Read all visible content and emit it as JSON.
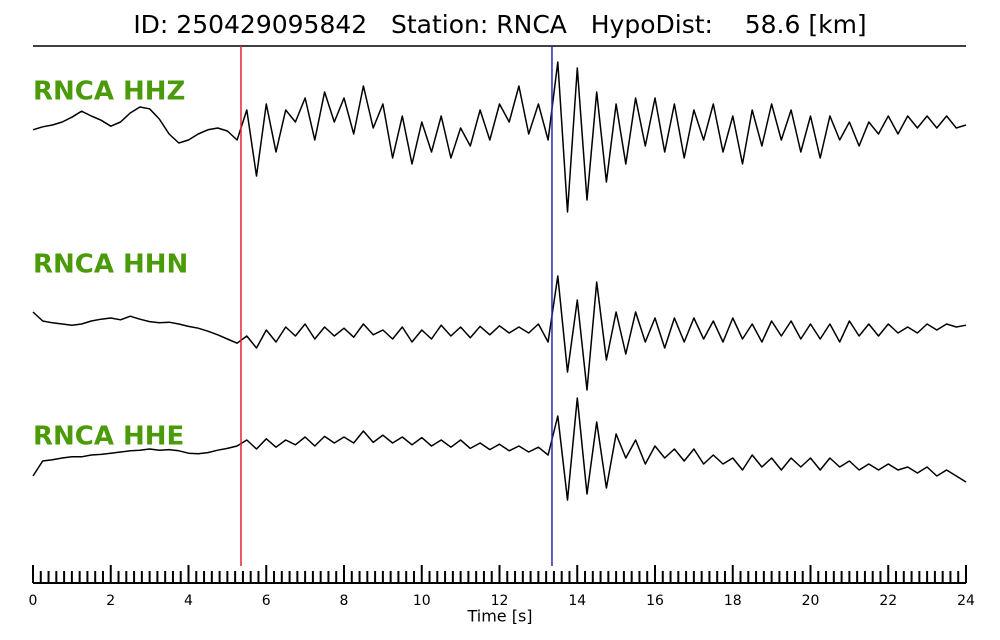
{
  "chart_data": {
    "type": "seismogram",
    "title": "ID: 250429095842   Station: RNCA   HypoDist:    58.6 [km]",
    "x_label": "Time [s]",
    "xlim": [
      0,
      24
    ],
    "xticks": [
      0,
      2,
      4,
      6,
      8,
      10,
      12,
      14,
      16,
      18,
      20,
      22,
      24
    ],
    "xminor_per_major": 10,
    "x": [
      0,
      0.25,
      0.5,
      0.75,
      1,
      1.25,
      1.5,
      1.75,
      2,
      2.25,
      2.5,
      2.75,
      3,
      3.25,
      3.5,
      3.75,
      4,
      4.25,
      4.5,
      4.75,
      5,
      5.25,
      5.5,
      5.75,
      6,
      6.25,
      6.5,
      6.75,
      7,
      7.25,
      7.5,
      7.75,
      8,
      8.25,
      8.5,
      8.75,
      9,
      9.25,
      9.5,
      9.75,
      10,
      10.25,
      10.5,
      10.75,
      11,
      11.25,
      11.5,
      11.75,
      12,
      12.25,
      12.5,
      12.75,
      13,
      13.25,
      13.5,
      13.75,
      14,
      14.25,
      14.5,
      14.75,
      15,
      15.25,
      15.5,
      15.75,
      16,
      16.25,
      16.5,
      16.75,
      17,
      17.25,
      17.5,
      17.75,
      18,
      18.25,
      18.5,
      18.75,
      19,
      19.25,
      19.5,
      19.75,
      20,
      20.25,
      20.5,
      20.75,
      21,
      21.25,
      21.5,
      21.75,
      22,
      22.25,
      22.5,
      22.75,
      23,
      23.25,
      23.5,
      23.75,
      24
    ],
    "label_color": "#4a9a0a",
    "series": [
      {
        "name": "RNCA HHZ",
        "color": "#000000",
        "values": [
          -0.3,
          0.2,
          0.5,
          1,
          1.8,
          2.8,
          2,
          1.3,
          0.3,
          1,
          2.5,
          3.5,
          3.2,
          1.5,
          -1,
          -2.5,
          -2,
          -1,
          -0.3,
          0,
          -0.5,
          -2,
          3,
          -8,
          4,
          -4,
          3,
          1,
          5,
          -2,
          6,
          1,
          5,
          -1,
          7,
          0,
          4,
          -5,
          2,
          -6,
          1,
          -4,
          2,
          -5,
          0,
          -3,
          3,
          -2,
          4,
          1,
          7,
          -1,
          4,
          -2,
          11,
          -14,
          10,
          -12,
          6,
          -9,
          4,
          -6,
          5,
          -3,
          5,
          -4,
          4,
          -5,
          3,
          -2,
          4,
          -4,
          2,
          -6,
          3,
          -3,
          4,
          -2,
          3,
          -4,
          2,
          -5,
          2,
          -2,
          1,
          -3,
          1,
          -1,
          2,
          -1,
          2,
          0,
          2,
          0,
          2,
          0,
          0.5
        ]
      },
      {
        "name": "RNCA HHN",
        "color": "#000000",
        "values": [
          3,
          1.5,
          1.2,
          1,
          0.8,
          1,
          1.5,
          1.8,
          2,
          1.7,
          2.3,
          1.8,
          1.4,
          1.2,
          1.3,
          1,
          0.6,
          0.3,
          -0.2,
          -0.8,
          -1.5,
          -2.2,
          -1,
          -3,
          0,
          -2,
          0.5,
          -1,
          1,
          -1.5,
          0.5,
          -1,
          0.3,
          -1.2,
          1,
          -0.8,
          0,
          -1.5,
          0.5,
          -2,
          0,
          -1.5,
          0.8,
          -1,
          0.5,
          -1.3,
          0.6,
          -0.8,
          0.7,
          -0.5,
          0.5,
          -0.5,
          1,
          -2,
          9,
          -7,
          5,
          -10,
          8,
          -5,
          3,
          -4,
          3,
          -2,
          2,
          -3,
          2,
          -2,
          2,
          -1.5,
          1.5,
          -2,
          2,
          -1.5,
          1,
          -2,
          1.5,
          -1,
          1.5,
          -1.5,
          1,
          -1.5,
          1,
          -2,
          1.5,
          -1,
          1,
          -1,
          1,
          -0.5,
          0.5,
          -0.5,
          1,
          0,
          1,
          0.5,
          0.8
        ]
      },
      {
        "name": "RNCA HHE",
        "color": "#000000",
        "values": [
          -4,
          -1.5,
          -1.3,
          -1,
          -0.8,
          -0.8,
          -0.5,
          -0.4,
          -0.2,
          0,
          0.2,
          0.3,
          0.5,
          0.3,
          0.4,
          0.2,
          -0.2,
          -0.3,
          -0.1,
          0.3,
          0.6,
          1,
          2,
          0.5,
          2.2,
          0.8,
          2,
          1.2,
          2.5,
          1,
          2.6,
          1.5,
          2.5,
          1.5,
          3.5,
          1.6,
          2.8,
          1.5,
          2.5,
          1.2,
          2.4,
          1,
          2,
          0.8,
          2,
          0.6,
          1.5,
          0.4,
          1.3,
          0.2,
          1,
          0,
          0.8,
          -0.5,
          6,
          -8,
          9,
          -7,
          5,
          -6,
          3,
          -1,
          2,
          -2,
          1,
          -1,
          0.5,
          -1.5,
          0.5,
          -2,
          -0.5,
          -2,
          -1,
          -3,
          -0.5,
          -2.5,
          -1,
          -3,
          -1,
          -2.5,
          -1,
          -3,
          -1,
          -2.5,
          -1.5,
          -3,
          -2,
          -3,
          -2,
          -3,
          -2.5,
          -3.5,
          -2.5,
          -4,
          -3,
          -4,
          -5
        ]
      }
    ],
    "picks": [
      {
        "x": 5.35,
        "color": "#e8262b"
      },
      {
        "x": 13.35,
        "color": "#2a2ab8"
      }
    ]
  }
}
